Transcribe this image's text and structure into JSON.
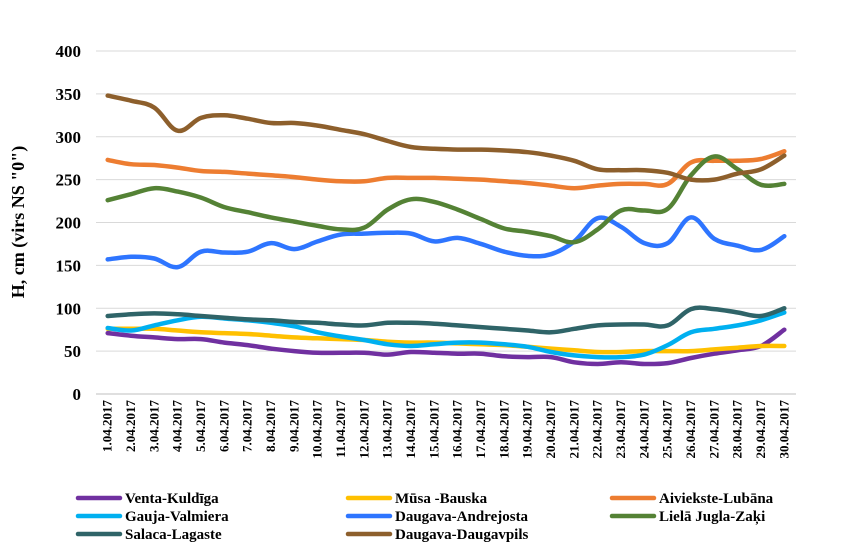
{
  "chart_data": {
    "type": "line",
    "title": "",
    "xlabel": "",
    "ylabel": "H, cm (virs NS \"0\")",
    "ylim": [
      0,
      400
    ],
    "yticks": [
      "0",
      "50",
      "100",
      "150",
      "200",
      "250",
      "300",
      "350",
      "400"
    ],
    "grid": "horizontal",
    "legend_position": "bottom",
    "x": [
      "1.04.2017",
      "2.04.2017",
      "3.04.2017",
      "4.04.2017",
      "5.04.2017",
      "6.04.2017",
      "7.04.2017",
      "8.04.2017",
      "9.04.2017",
      "10.04.2017",
      "11.04.2017",
      "12.04.2017",
      "13.04.2017",
      "14.04.2017",
      "15.04.2017",
      "16.04.2017",
      "17.04.2017",
      "18.04.2017",
      "19.04.2017",
      "20.04.2017",
      "21.04.2017",
      "22.04.2017",
      "23.04.2017",
      "24.04.2017",
      "25.04.2017",
      "26.04.2017",
      "27.04.2017",
      "28.04.2017",
      "29.04.2017",
      "30.04.2017"
    ],
    "series": [
      {
        "name": "Venta-Kuldīga",
        "color": "#7030a0",
        "values": [
          71,
          68,
          66,
          64,
          64,
          60,
          57,
          53,
          50,
          48,
          48,
          48,
          46,
          49,
          48,
          47,
          47,
          44,
          43,
          43,
          37,
          35,
          37,
          35,
          36,
          42,
          47,
          51,
          56,
          75
        ]
      },
      {
        "name": "Mūsa -Bauska",
        "color": "#ffc000",
        "values": [
          76,
          76,
          76,
          74,
          72,
          71,
          70,
          68,
          66,
          65,
          64,
          63,
          61,
          60,
          60,
          59,
          58,
          57,
          55,
          53,
          51,
          49,
          49,
          50,
          50,
          50,
          52,
          54,
          56,
          56
        ]
      },
      {
        "name": "Aiviekste-Lubāna",
        "color": "#ed7d31",
        "values": [
          273,
          268,
          267,
          264,
          260,
          259,
          257,
          255,
          253,
          250,
          248,
          248,
          252,
          252,
          252,
          251,
          250,
          248,
          246,
          243,
          240,
          243,
          245,
          245,
          245,
          270,
          272,
          272,
          274,
          283
        ]
      },
      {
        "name": "Gauja-Valmiera",
        "color": "#00b0f0",
        "values": [
          77,
          74,
          80,
          86,
          90,
          88,
          86,
          83,
          79,
          72,
          67,
          63,
          58,
          56,
          58,
          60,
          60,
          58,
          55,
          49,
          45,
          43,
          43,
          46,
          57,
          72,
          76,
          80,
          86,
          95
        ]
      },
      {
        "name": "Daugava-Andrejosta",
        "color": "#2e75ff",
        "values": [
          157,
          160,
          158,
          148,
          166,
          165,
          166,
          176,
          169,
          178,
          186,
          187,
          188,
          187,
          178,
          182,
          175,
          166,
          161,
          163,
          178,
          205,
          195,
          176,
          176,
          206,
          181,
          173,
          168,
          184
        ]
      },
      {
        "name": "Lielā Jugla-Zaķi",
        "color": "#548235",
        "values": [
          226,
          233,
          240,
          236,
          229,
          218,
          212,
          206,
          201,
          196,
          192,
          194,
          215,
          227,
          224,
          215,
          204,
          193,
          189,
          184,
          177,
          192,
          214,
          214,
          216,
          255,
          277,
          262,
          244,
          245
        ]
      },
      {
        "name": "Salaca-Lagaste",
        "color": "#2f6468",
        "values": [
          91,
          93,
          94,
          93,
          91,
          89,
          87,
          86,
          84,
          83,
          81,
          80,
          83,
          83,
          82,
          80,
          78,
          76,
          74,
          72,
          76,
          80,
          81,
          81,
          80,
          99,
          99,
          95,
          91,
          100
        ]
      },
      {
        "name": "Daugava-Daugavpils",
        "color": "#8d5f2c",
        "values": [
          348,
          342,
          334,
          307,
          322,
          325,
          321,
          316,
          316,
          313,
          308,
          303,
          295,
          288,
          286,
          285,
          285,
          284,
          282,
          278,
          272,
          262,
          261,
          261,
          258,
          250,
          250,
          257,
          262,
          278
        ]
      }
    ]
  }
}
